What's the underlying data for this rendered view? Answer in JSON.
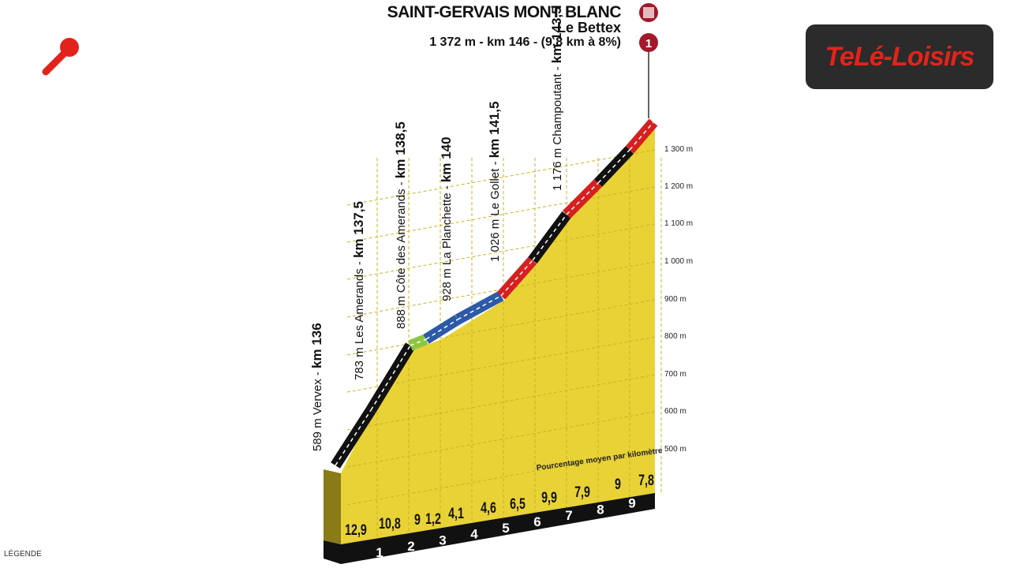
{
  "header": {
    "title": "SAINT-GERVAIS MONT BLANC",
    "subtitle": "Le Bettex",
    "info": "1 372 m - km 146 - (9,8 km à 8%)",
    "finish_marker_icon": "checkered-flag-icon",
    "category_badge": "1"
  },
  "logo": {
    "text": "TeLé-Loisirs",
    "color": "#e2231a"
  },
  "mic_icon": "microphone-icon",
  "legend": "LÉGENDE",
  "profile_note": "Pourcentage moyen par kilomètre",
  "waypoints": [
    {
      "alt": "589 m",
      "name": "Vervex",
      "km": "km 136"
    },
    {
      "alt": "783 m",
      "name": "Les Amerands",
      "km": "km 137,5"
    },
    {
      "alt": "888 m",
      "name": "Côte des Amerands",
      "km": "km 138,5"
    },
    {
      "alt": "928 m",
      "name": "La Planchette",
      "km": "km 140"
    },
    {
      "alt": "1 026 m",
      "name": "Le Gollet",
      "km": "km 141,5"
    },
    {
      "alt": "1 176 m",
      "name": "Champoutant",
      "km": "km 143,5"
    }
  ],
  "elevation_ticks": [
    "1 300 m",
    "1 200 m",
    "1 100 m",
    "1 000 m",
    "900 m",
    "800 m",
    "700 m",
    "600 m",
    "500 m"
  ],
  "gradients": [
    "12,9",
    "10,8",
    "9",
    "1,2",
    "4,1",
    "4,6",
    "6,5",
    "9,9",
    "7,9",
    "9",
    "7,8"
  ],
  "km_marks": [
    "1",
    "2",
    "3",
    "4",
    "5",
    "6",
    "7",
    "8",
    "9"
  ],
  "segment_colors": {
    "steep": "#d62020",
    "hard": "#111111",
    "moderate": "#2d5aa8",
    "easy": "#8cc63f",
    "terrain": "#e8d236"
  }
}
